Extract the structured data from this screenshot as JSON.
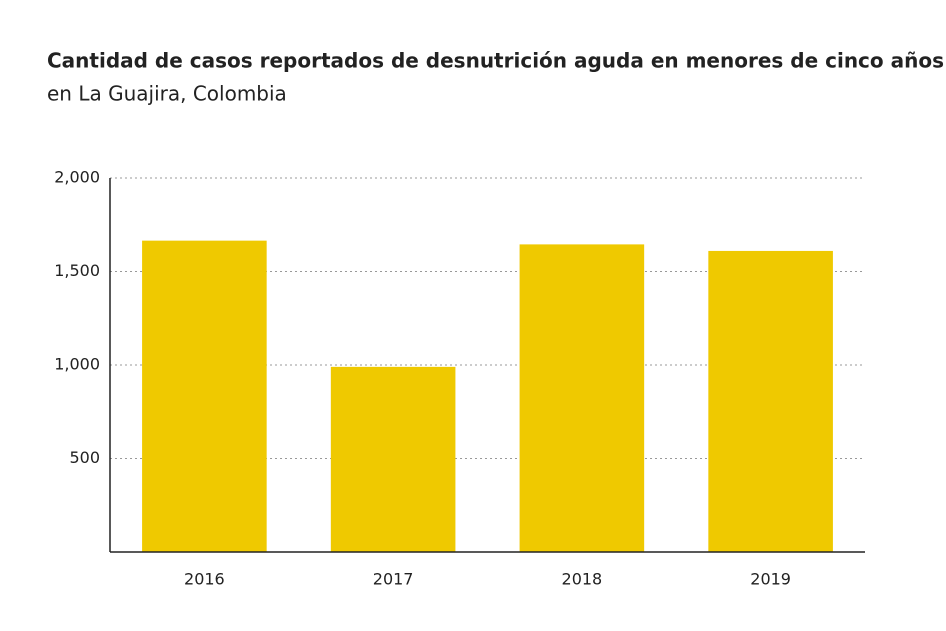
{
  "chart_data": {
    "type": "bar",
    "title": "Cantidad de casos reportados de desnutrición aguda en menores de cinco años",
    "subtitle": "en La Guajira, Colombia",
    "categories": [
      "2016",
      "2017",
      "2018",
      "2019"
    ],
    "values": [
      1665,
      990,
      1645,
      1610
    ],
    "color": "#efc900",
    "ylim": [
      0,
      2000
    ],
    "yticks": [
      500,
      {
        "value": 1000,
        "label": "1,000"
      },
      {
        "value": 1500,
        "label": "1,500"
      },
      {
        "value": 2000,
        "label": "2,000"
      }
    ],
    "grid": true
  }
}
